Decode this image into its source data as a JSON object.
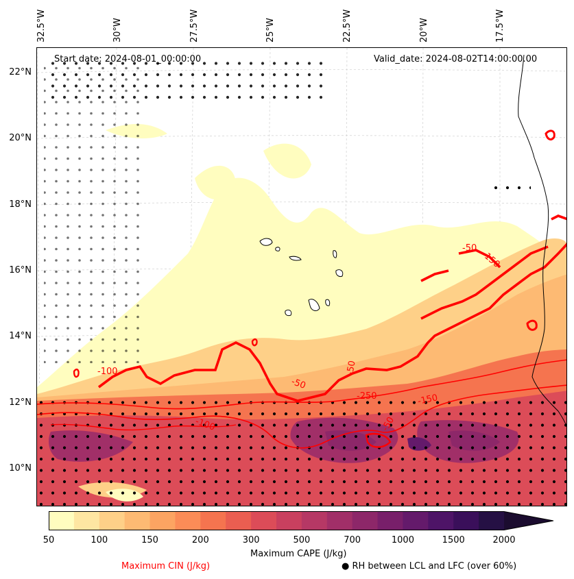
{
  "map": {
    "start_date_label": "Start date: 2024-08-01_00:00:00",
    "valid_date_label": "Valid_date: 2024-08-02T14:00:00.00",
    "longitude_labels": [
      "32.5°W",
      "30°W",
      "27.5°W",
      "25°W",
      "22.5°W",
      "20°W",
      "17.5°W"
    ],
    "latitude_labels": [
      "22°N",
      "20°N",
      "18°N",
      "16°N",
      "14°N",
      "12°N",
      "10°N"
    ],
    "contour_labels": [
      "-100",
      "-250",
      "-150",
      "-100",
      "-50",
      "-150",
      "-50",
      "-50",
      "-50"
    ]
  },
  "colorbar": {
    "title": "Maximum CAPE (J/kg)",
    "tick_labels": [
      "50",
      "100",
      "150",
      "200",
      "300",
      "500",
      "700",
      "1000",
      "1500",
      "2000"
    ],
    "colors": [
      "#fffdbf",
      "#fee6a2",
      "#fed088",
      "#fdba73",
      "#fca462",
      "#fb8c57",
      "#f5744f",
      "#ea5e51",
      "#dc4c58",
      "#c9405f",
      "#b63865",
      "#a12f68",
      "#8d2769",
      "#781f6a",
      "#641a6b",
      "#4e1467",
      "#3a0f5a",
      "#251044",
      "#1b0c2f"
    ]
  },
  "legend": {
    "cin_label": "Maximum CIN (J/kg)",
    "cin_color": "#ff0000",
    "rh_label": "RH between LCL and LFC (over 60%)",
    "rh_marker": "●"
  }
}
